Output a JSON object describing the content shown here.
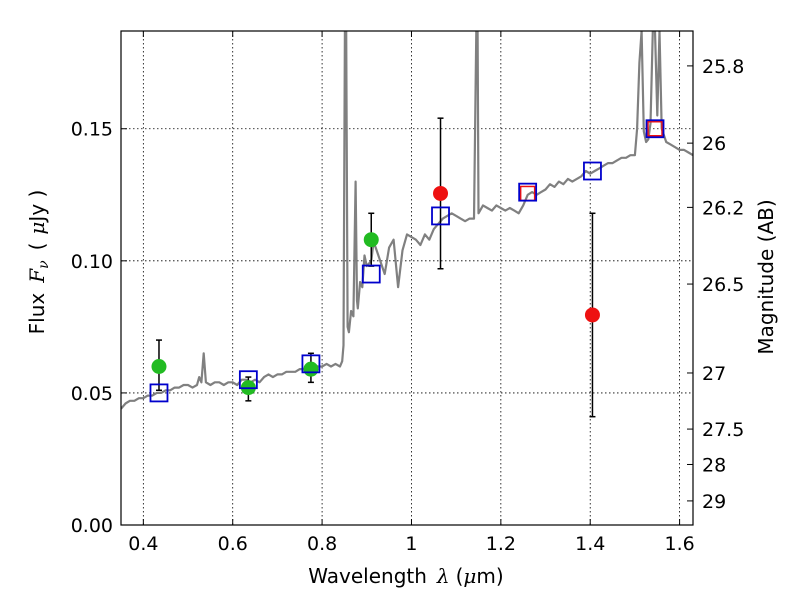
{
  "chart_data": {
    "type": "scatter",
    "title": "",
    "xlabel": "Wavelength",
    "xlabel_symbol": "λ",
    "xlabel_unit_prefix": "(",
    "xlabel_unit_mu": "μ",
    "xlabel_unit_suffix": "m)",
    "ylabel": "Flux",
    "ylabel_symbol": "F",
    "ylabel_symbol_sub": "ν",
    "ylabel_unit_prefix": "(",
    "ylabel_unit_mu": "μ",
    "ylabel_unit_suffix": "Jy )",
    "y2label": "Magnitude (AB)",
    "xlim": [
      0.35,
      1.63
    ],
    "ylim": [
      0.0,
      0.187
    ],
    "xticks": [
      {
        "v": 0.4,
        "label": "0.4"
      },
      {
        "v": 0.6,
        "label": "0.6"
      },
      {
        "v": 0.8,
        "label": "0.8"
      },
      {
        "v": 1.0,
        "label": "1"
      },
      {
        "v": 1.2,
        "label": "1.2"
      },
      {
        "v": 1.4,
        "label": "1.4"
      },
      {
        "v": 1.6,
        "label": "1.6"
      }
    ],
    "yticks": [
      {
        "v": 0.0,
        "label": "0.00"
      },
      {
        "v": 0.05,
        "label": "0.05"
      },
      {
        "v": 0.1,
        "label": "0.10"
      },
      {
        "v": 0.15,
        "label": "0.15"
      }
    ],
    "y2ticks": [
      {
        "mag": 25.8,
        "label": "25.8"
      },
      {
        "mag": 26,
        "label": "26"
      },
      {
        "mag": 26.2,
        "label": "26.2"
      },
      {
        "mag": 26.5,
        "label": "26.5"
      },
      {
        "mag": 27,
        "label": "27"
      },
      {
        "mag": 27.5,
        "label": "27.5"
      },
      {
        "mag": 28,
        "label": "28"
      },
      {
        "mag": 29,
        "label": "29"
      }
    ],
    "grid": true,
    "grid_style": "dotted",
    "colors": {
      "spectrum": "#808080",
      "green_points": "#22bb22",
      "red_points": "#ee1111",
      "model_squares": "#0000cc",
      "errorbar": "#000000"
    },
    "spectrum": [
      [
        0.35,
        0.044
      ],
      [
        0.36,
        0.046
      ],
      [
        0.37,
        0.047
      ],
      [
        0.38,
        0.047
      ],
      [
        0.39,
        0.048
      ],
      [
        0.4,
        0.048
      ],
      [
        0.41,
        0.049
      ],
      [
        0.42,
        0.049
      ],
      [
        0.43,
        0.05
      ],
      [
        0.44,
        0.05
      ],
      [
        0.45,
        0.051
      ],
      [
        0.46,
        0.051
      ],
      [
        0.47,
        0.052
      ],
      [
        0.48,
        0.052
      ],
      [
        0.49,
        0.053
      ],
      [
        0.5,
        0.053
      ],
      [
        0.51,
        0.052
      ],
      [
        0.52,
        0.053
      ],
      [
        0.525,
        0.056
      ],
      [
        0.53,
        0.054
      ],
      [
        0.535,
        0.065
      ],
      [
        0.54,
        0.054
      ],
      [
        0.55,
        0.053
      ],
      [
        0.56,
        0.054
      ],
      [
        0.57,
        0.054
      ],
      [
        0.58,
        0.053
      ],
      [
        0.59,
        0.054
      ],
      [
        0.6,
        0.054
      ],
      [
        0.61,
        0.053
      ],
      [
        0.62,
        0.055
      ],
      [
        0.63,
        0.055
      ],
      [
        0.64,
        0.054
      ],
      [
        0.65,
        0.055
      ],
      [
        0.66,
        0.054
      ],
      [
        0.67,
        0.056
      ],
      [
        0.68,
        0.057
      ],
      [
        0.69,
        0.056
      ],
      [
        0.7,
        0.057
      ],
      [
        0.71,
        0.057
      ],
      [
        0.72,
        0.058
      ],
      [
        0.73,
        0.058
      ],
      [
        0.74,
        0.058
      ],
      [
        0.75,
        0.059
      ],
      [
        0.76,
        0.059
      ],
      [
        0.77,
        0.059
      ],
      [
        0.78,
        0.061
      ],
      [
        0.79,
        0.06
      ],
      [
        0.8,
        0.06
      ],
      [
        0.81,
        0.061
      ],
      [
        0.82,
        0.06
      ],
      [
        0.83,
        0.061
      ],
      [
        0.84,
        0.06
      ],
      [
        0.845,
        0.062
      ],
      [
        0.848,
        0.068
      ],
      [
        0.851,
        0.187
      ],
      [
        0.854,
        0.187
      ],
      [
        0.857,
        0.075
      ],
      [
        0.86,
        0.073
      ],
      [
        0.865,
        0.081
      ],
      [
        0.87,
        0.079
      ],
      [
        0.875,
        0.13
      ],
      [
        0.878,
        0.085
      ],
      [
        0.88,
        0.082
      ],
      [
        0.885,
        0.092
      ],
      [
        0.89,
        0.09
      ],
      [
        0.895,
        0.102
      ],
      [
        0.9,
        0.098
      ],
      [
        0.91,
        0.1
      ],
      [
        0.915,
        0.107
      ],
      [
        0.92,
        0.105
      ],
      [
        0.93,
        0.1
      ],
      [
        0.94,
        0.095
      ],
      [
        0.95,
        0.105
      ],
      [
        0.96,
        0.108
      ],
      [
        0.97,
        0.09
      ],
      [
        0.98,
        0.104
      ],
      [
        0.99,
        0.11
      ],
      [
        1.0,
        0.109
      ],
      [
        1.01,
        0.108
      ],
      [
        1.02,
        0.106
      ],
      [
        1.03,
        0.11
      ],
      [
        1.04,
        0.108
      ],
      [
        1.05,
        0.112
      ],
      [
        1.06,
        0.114
      ],
      [
        1.07,
        0.116
      ],
      [
        1.08,
        0.117
      ],
      [
        1.09,
        0.118
      ],
      [
        1.1,
        0.117
      ],
      [
        1.11,
        0.116
      ],
      [
        1.12,
        0.115
      ],
      [
        1.13,
        0.116
      ],
      [
        1.14,
        0.116
      ],
      [
        1.145,
        0.187
      ],
      [
        1.148,
        0.187
      ],
      [
        1.15,
        0.118
      ],
      [
        1.16,
        0.121
      ],
      [
        1.17,
        0.12
      ],
      [
        1.18,
        0.119
      ],
      [
        1.19,
        0.121
      ],
      [
        1.2,
        0.12
      ],
      [
        1.21,
        0.119
      ],
      [
        1.22,
        0.12
      ],
      [
        1.23,
        0.119
      ],
      [
        1.24,
        0.118
      ],
      [
        1.25,
        0.121
      ],
      [
        1.26,
        0.125
      ],
      [
        1.27,
        0.126
      ],
      [
        1.28,
        0.125
      ],
      [
        1.29,
        0.126
      ],
      [
        1.3,
        0.127
      ],
      [
        1.31,
        0.129
      ],
      [
        1.32,
        0.128
      ],
      [
        1.33,
        0.13
      ],
      [
        1.34,
        0.129
      ],
      [
        1.35,
        0.131
      ],
      [
        1.36,
        0.13
      ],
      [
        1.37,
        0.131
      ],
      [
        1.38,
        0.132
      ],
      [
        1.39,
        0.134
      ],
      [
        1.4,
        0.133
      ],
      [
        1.41,
        0.134
      ],
      [
        1.42,
        0.135
      ],
      [
        1.43,
        0.136
      ],
      [
        1.44,
        0.137
      ],
      [
        1.45,
        0.137
      ],
      [
        1.46,
        0.138
      ],
      [
        1.47,
        0.139
      ],
      [
        1.48,
        0.139
      ],
      [
        1.49,
        0.14
      ],
      [
        1.5,
        0.14
      ],
      [
        1.505,
        0.15
      ],
      [
        1.51,
        0.175
      ],
      [
        1.515,
        0.187
      ],
      [
        1.52,
        0.149
      ],
      [
        1.525,
        0.145
      ],
      [
        1.53,
        0.146
      ],
      [
        1.535,
        0.152
      ],
      [
        1.54,
        0.187
      ],
      [
        1.545,
        0.187
      ],
      [
        1.55,
        0.155
      ],
      [
        1.555,
        0.187
      ],
      [
        1.56,
        0.15
      ],
      [
        1.57,
        0.145
      ],
      [
        1.58,
        0.144
      ],
      [
        1.59,
        0.143
      ],
      [
        1.6,
        0.142
      ],
      [
        1.61,
        0.142
      ],
      [
        1.62,
        0.141
      ],
      [
        1.63,
        0.14
      ]
    ],
    "green_points": [
      {
        "x": 0.435,
        "y": 0.06,
        "err": [
          0.051,
          0.07
        ]
      },
      {
        "x": 0.635,
        "y": 0.052,
        "err": [
          0.047,
          0.056
        ]
      },
      {
        "x": 0.775,
        "y": 0.059,
        "err": [
          0.054,
          0.065
        ]
      },
      {
        "x": 0.91,
        "y": 0.108,
        "err": [
          0.098,
          0.118
        ]
      }
    ],
    "red_points": [
      {
        "x": 1.065,
        "y": 0.1255,
        "err": [
          0.097,
          0.154
        ]
      },
      {
        "x": 1.405,
        "y": 0.0795,
        "err": [
          0.041,
          0.118
        ]
      }
    ],
    "red_squares": [
      {
        "x": 1.26,
        "y": 0.1255
      },
      {
        "x": 1.545,
        "y": 0.15
      }
    ],
    "model_squares": [
      {
        "x": 0.435,
        "y": 0.05
      },
      {
        "x": 0.635,
        "y": 0.055
      },
      {
        "x": 0.775,
        "y": 0.061
      },
      {
        "x": 0.91,
        "y": 0.095
      },
      {
        "x": 1.065,
        "y": 0.117
      },
      {
        "x": 1.26,
        "y": 0.126
      },
      {
        "x": 1.405,
        "y": 0.134
      },
      {
        "x": 1.545,
        "y": 0.15
      }
    ]
  }
}
